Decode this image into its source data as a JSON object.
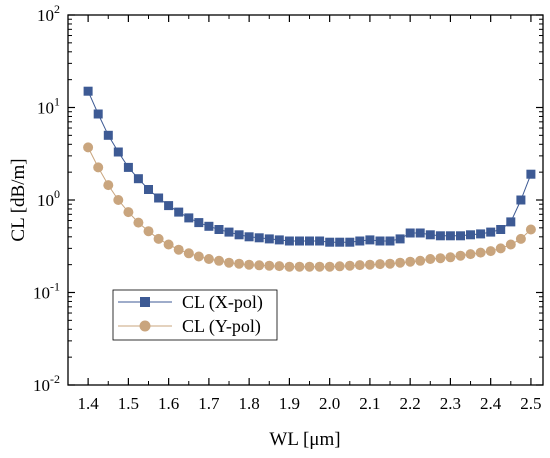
{
  "chart_data": {
    "type": "scatter",
    "xlabel": "WL  [μm]",
    "ylabel": "CL  [dB/m]",
    "xlim": [
      1.35,
      2.53
    ],
    "ylim": [
      0.01,
      100
    ],
    "yscale": "log",
    "x_ticks": [
      "1.4",
      "1.5",
      "1.6",
      "1.7",
      "1.8",
      "1.9",
      "2.0",
      "2.1",
      "2.2",
      "2.3",
      "2.4",
      "2.5"
    ],
    "y_ticks": [
      {
        "base": "10",
        "exp": "-2"
      },
      {
        "base": "10",
        "exp": "-1"
      },
      {
        "base": "10",
        "exp": "0"
      },
      {
        "base": "10",
        "exp": "1"
      },
      {
        "base": "10",
        "exp": "2"
      }
    ],
    "legend_position": "lower-left",
    "grid": false,
    "series": [
      {
        "name": "CL (X-pol)",
        "marker": "square",
        "color": "#3d5a94",
        "x": [
          1.4,
          1.425,
          1.45,
          1.475,
          1.5,
          1.525,
          1.55,
          1.575,
          1.6,
          1.625,
          1.65,
          1.675,
          1.7,
          1.725,
          1.75,
          1.775,
          1.8,
          1.825,
          1.85,
          1.875,
          1.9,
          1.925,
          1.95,
          1.975,
          2.0,
          2.025,
          2.05,
          2.075,
          2.1,
          2.125,
          2.15,
          2.175,
          2.2,
          2.225,
          2.25,
          2.275,
          2.3,
          2.325,
          2.35,
          2.375,
          2.4,
          2.425,
          2.45,
          2.475,
          2.5
        ],
        "y": [
          15,
          8.5,
          5.0,
          3.3,
          2.25,
          1.7,
          1.3,
          1.05,
          0.87,
          0.74,
          0.64,
          0.57,
          0.52,
          0.48,
          0.45,
          0.42,
          0.4,
          0.39,
          0.38,
          0.37,
          0.36,
          0.36,
          0.36,
          0.36,
          0.35,
          0.35,
          0.35,
          0.36,
          0.37,
          0.36,
          0.36,
          0.38,
          0.44,
          0.44,
          0.42,
          0.41,
          0.41,
          0.41,
          0.42,
          0.43,
          0.45,
          0.48,
          0.58,
          1.0,
          1.9
        ]
      },
      {
        "name": "CL (Y-pol)",
        "marker": "circle",
        "color": "#c9a57e",
        "x": [
          1.4,
          1.425,
          1.45,
          1.475,
          1.5,
          1.525,
          1.55,
          1.575,
          1.6,
          1.625,
          1.65,
          1.675,
          1.7,
          1.725,
          1.75,
          1.775,
          1.8,
          1.825,
          1.85,
          1.875,
          1.9,
          1.925,
          1.95,
          1.975,
          2.0,
          2.025,
          2.05,
          2.075,
          2.1,
          2.125,
          2.15,
          2.175,
          2.2,
          2.225,
          2.25,
          2.275,
          2.3,
          2.325,
          2.35,
          2.375,
          2.4,
          2.425,
          2.45,
          2.475,
          2.5
        ],
        "y": [
          3.7,
          2.25,
          1.45,
          1.0,
          0.74,
          0.57,
          0.46,
          0.38,
          0.33,
          0.29,
          0.265,
          0.245,
          0.23,
          0.22,
          0.21,
          0.205,
          0.2,
          0.197,
          0.195,
          0.193,
          0.19,
          0.19,
          0.19,
          0.19,
          0.19,
          0.192,
          0.195,
          0.198,
          0.2,
          0.203,
          0.205,
          0.21,
          0.215,
          0.22,
          0.23,
          0.235,
          0.24,
          0.25,
          0.26,
          0.27,
          0.28,
          0.3,
          0.33,
          0.38,
          0.48
        ]
      }
    ]
  }
}
